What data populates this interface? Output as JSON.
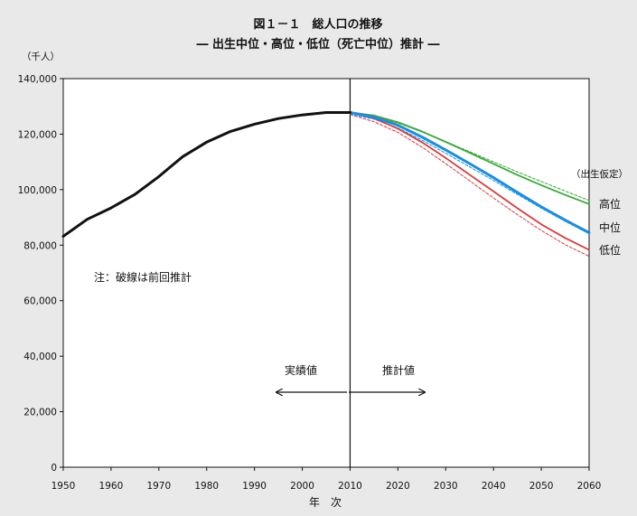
{
  "chart_data": {
    "type": "line",
    "title": "図１－１　総人口の推移",
    "subtitle": "― 出生中位・高位・低位（死亡中位）推計 ―",
    "ylabel": "（千人）",
    "xlabel": "年　次",
    "xlim": [
      1950,
      2060
    ],
    "ylim": [
      0,
      140000
    ],
    "x_ticks": [
      1950,
      1960,
      1970,
      1980,
      1990,
      2000,
      2010,
      2020,
      2030,
      2040,
      2050,
      2060
    ],
    "y_ticks": [
      0,
      20000,
      40000,
      60000,
      80000,
      100000,
      120000,
      140000
    ],
    "y_tick_labels": [
      "0",
      "20,000",
      "40,000",
      "60,000",
      "80,000",
      "100,000",
      "120,000",
      "140,000"
    ],
    "grid": false,
    "divider_x": 2010,
    "annotations": {
      "note": "注：破線は前回推計",
      "actual_label": "実績値",
      "projection_label": "推計値",
      "legend_title": "（出生仮定）"
    },
    "series": [
      {
        "name": "",
        "style": "solid",
        "color": "#111111",
        "width": 3,
        "x": [
          1950,
          1955,
          1960,
          1965,
          1970,
          1972,
          1975,
          1980,
          1985,
          1990,
          1995,
          2000,
          2005,
          2010
        ],
        "y": [
          83200,
          89300,
          93400,
          98300,
          104700,
          107600,
          111900,
          117100,
          121000,
          123600,
          125600,
          126900,
          127800,
          127800
        ]
      },
      {
        "name": "高位",
        "style": "solid",
        "color": "#3aa83a",
        "width": 1.8,
        "x": [
          2010,
          2015,
          2020,
          2025,
          2030,
          2035,
          2040,
          2045,
          2050,
          2055,
          2060
        ],
        "y": [
          127800,
          126700,
          124300,
          121000,
          117200,
          113300,
          109300,
          105300,
          101600,
          98100,
          94800
        ]
      },
      {
        "name": "中位",
        "style": "solid",
        "color": "#1a8ee0",
        "width": 3,
        "x": [
          2010,
          2015,
          2020,
          2025,
          2030,
          2035,
          2040,
          2045,
          2050,
          2055,
          2060
        ],
        "y": [
          127800,
          126200,
          123200,
          119000,
          114300,
          109400,
          104300,
          99000,
          93800,
          89000,
          84500
        ]
      },
      {
        "name": "低位",
        "style": "solid",
        "color": "#d83a3a",
        "width": 1.8,
        "x": [
          2010,
          2015,
          2020,
          2025,
          2030,
          2035,
          2040,
          2045,
          2050,
          2055,
          2060
        ],
        "y": [
          127800,
          125700,
          122000,
          117100,
          111400,
          105400,
          99400,
          93300,
          87500,
          82600,
          78300
        ]
      },
      {
        "name": "",
        "style": "dashed",
        "color": "#3aa83a",
        "width": 1,
        "x": [
          2010,
          2015,
          2020,
          2025,
          2030,
          2035,
          2040,
          2045,
          2050,
          2055,
          2060
        ],
        "y": [
          127400,
          126300,
          124000,
          120800,
          117300,
          113700,
          110000,
          106400,
          102900,
          99500,
          96100
        ]
      },
      {
        "name": "",
        "style": "dashed",
        "color": "#1a8ee0",
        "width": 1,
        "x": [
          2010,
          2015,
          2020,
          2025,
          2030,
          2035,
          2040,
          2045,
          2050,
          2055,
          2060
        ],
        "y": [
          127200,
          125400,
          122200,
          117900,
          113100,
          108200,
          103300,
          98300,
          93300,
          88600,
          84100
        ]
      },
      {
        "name": "",
        "style": "dashed",
        "color": "#d83a3a",
        "width": 1,
        "x": [
          2010,
          2015,
          2020,
          2025,
          2030,
          2035,
          2040,
          2045,
          2050,
          2055,
          2060
        ],
        "y": [
          127000,
          124500,
          120600,
          115400,
          109400,
          103200,
          97000,
          91000,
          85300,
          80200,
          76000
        ]
      }
    ],
    "end_labels": [
      "高位",
      "中位",
      "低位"
    ]
  }
}
